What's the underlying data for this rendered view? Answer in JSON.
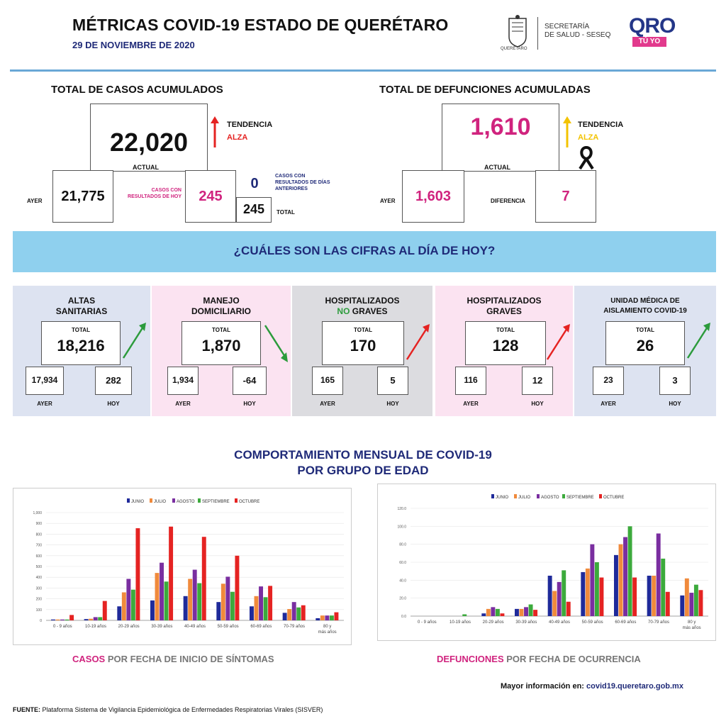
{
  "header": {
    "title": "MÉTRICAS COVID-19 ESTADO DE QUERÉTARO",
    "date": "29 DE NOVIEMBRE DE 2020",
    "seal_caption": "QUERÉTARO",
    "secretaria_line1": "SECRETARÍA",
    "secretaria_line2": "DE SALUD - SESEQ",
    "brand_main": "QRO",
    "brand_sub": "TÚ YO"
  },
  "casos": {
    "section_title": "TOTAL DE CASOS ACUMULADOS",
    "actual_value": "22,020",
    "actual_label": "ACTUAL",
    "tendencia_label": "TENDENCIA",
    "tendencia_value": "ALZA",
    "ayer_label": "AYER",
    "ayer_value": "21,775",
    "hoy_caption": "CASOS CON RESULTADOS DE HOY",
    "hoy_value": "245",
    "anteriores_value": "0",
    "anteriores_caption": "CASOS CON RESULTADOS DE DÍAS ANTERIORES",
    "total_value": "245",
    "total_label": "TOTAL"
  },
  "defunciones": {
    "section_title": "TOTAL DE DEFUNCIONES ACUMULADAS",
    "actual_value": "1,610",
    "actual_label": "ACTUAL",
    "tendencia_label": "TENDENCIA",
    "tendencia_value": "ALZA",
    "ayer_label": "AYER",
    "ayer_value": "1,603",
    "diferencia_label": "DIFERENCIA",
    "diferencia_value": "7"
  },
  "banner": "¿CUÁLES SON LAS CIFRAS AL DÍA DE HOY?",
  "panels": [
    {
      "title1": "ALTAS",
      "title2": "SANITARIAS",
      "total_label": "TOTAL",
      "total": "18,216",
      "ayer": "17,934",
      "hoy": "282",
      "ayer_label": "AYER",
      "hoy_label": "HOY",
      "trend": "up"
    },
    {
      "title1": "MANEJO",
      "title2": "DOMICILIARIO",
      "total_label": "TOTAL",
      "total": "1,870",
      "ayer": "1,934",
      "hoy": "-64",
      "ayer_label": "AYER",
      "hoy_label": "HOY",
      "trend": "down"
    },
    {
      "title1": "HOSPITALIZADOS",
      "title2a": "NO",
      "title2b": "GRAVES",
      "total_label": "TOTAL",
      "total": "170",
      "ayer": "165",
      "hoy": "5",
      "ayer_label": "AYER",
      "hoy_label": "HOY",
      "trend": "up"
    },
    {
      "title1": "HOSPITALIZADOS",
      "title2": "GRAVES",
      "total_label": "TOTAL",
      "total": "128",
      "ayer": "116",
      "hoy": "12",
      "ayer_label": "AYER",
      "hoy_label": "HOY",
      "trend": "up"
    },
    {
      "title1": "UNIDAD MÉDICA DE",
      "title2": "AISLAMIENTO COVID-19",
      "total_label": "TOTAL",
      "total": "26",
      "ayer": "23",
      "hoy": "3",
      "ayer_label": "AYER",
      "hoy_label": "HOY",
      "trend": "up"
    }
  ],
  "charts_section": {
    "title1": "COMPORTAMIENTO MENSUAL DE COVID-19",
    "title2": "POR GRUPO DE EDAD",
    "casos_caption_a": "CASOS",
    "casos_caption_b": " POR FECHA DE INICIO DE SÍNTOMAS",
    "def_caption_a": "DEFUNCIONES",
    "def_caption_b": " POR FECHA DE OCURRENCIA"
  },
  "colors": {
    "junio": "#1f2a9a",
    "julio": "#f08a3c",
    "agosto": "#7a2ea0",
    "septiembre": "#3caa3c",
    "octubre": "#e52322"
  },
  "chart_data": [
    {
      "type": "bar",
      "title": "",
      "categories": [
        "0 - 9 años",
        "10-19 años",
        "20-29 años",
        "30-39 años",
        "40-49 años",
        "50-59 años",
        "60-69 años",
        "70-79 años",
        "80 y más años"
      ],
      "ytick_labels": [
        "0",
        "100",
        "200",
        "300",
        "400",
        "500",
        "600",
        "700",
        "800",
        "900",
        "1,000"
      ],
      "ylim": [
        0,
        1000
      ],
      "legend_position": "top",
      "series": [
        {
          "name": "JUNIO",
          "values": [
            8,
            12,
            130,
            185,
            225,
            170,
            130,
            70,
            20
          ]
        },
        {
          "name": "JULIO",
          "values": [
            8,
            15,
            260,
            440,
            385,
            340,
            225,
            105,
            45
          ]
        },
        {
          "name": "AGOSTO",
          "values": [
            8,
            30,
            385,
            535,
            470,
            405,
            315,
            170,
            45
          ]
        },
        {
          "name": "SEPTIEMBRE",
          "values": [
            8,
            30,
            285,
            360,
            345,
            265,
            215,
            120,
            45
          ]
        },
        {
          "name": "OCTUBRE",
          "values": [
            50,
            180,
            855,
            870,
            775,
            600,
            320,
            140,
            75
          ]
        }
      ]
    },
    {
      "type": "bar",
      "title": "",
      "categories": [
        "0 - 9 años",
        "10-19 años",
        "20-29 años",
        "30-39 años",
        "40-49 años",
        "50-59 años",
        "60-69 años",
        "70-79 años",
        "80 y más años"
      ],
      "ytick_labels": [
        "0.0",
        "20.0",
        "40.0",
        "60.0",
        "80.0",
        "100.0",
        "120.0"
      ],
      "ylim": [
        0,
        120
      ],
      "legend_position": "top",
      "series": [
        {
          "name": "JUNIO",
          "values": [
            0,
            0,
            3,
            8,
            45,
            49,
            68,
            45,
            23
          ]
        },
        {
          "name": "JULIO",
          "values": [
            0,
            0,
            8,
            8,
            28,
            53,
            80,
            45,
            42
          ]
        },
        {
          "name": "AGOSTO",
          "values": [
            0,
            0,
            10,
            10,
            38,
            80,
            88,
            92,
            26
          ]
        },
        {
          "name": "SEPTIEMBRE",
          "values": [
            0,
            2,
            8,
            13,
            51,
            60,
            100,
            64,
            35
          ]
        },
        {
          "name": "OCTUBRE",
          "values": [
            0,
            0,
            3,
            7,
            16,
            43,
            43,
            27,
            29
          ]
        }
      ]
    }
  ],
  "footer": {
    "source_label": "FUENTE:",
    "source_text": " Plataforma Sistema  de Vigilancia Epidemiológica de Enfermedades Respiratorias Virales (SISVER)",
    "more_label": "Mayor información en: ",
    "more_link": "covid19.queretaro.gob.mx"
  }
}
